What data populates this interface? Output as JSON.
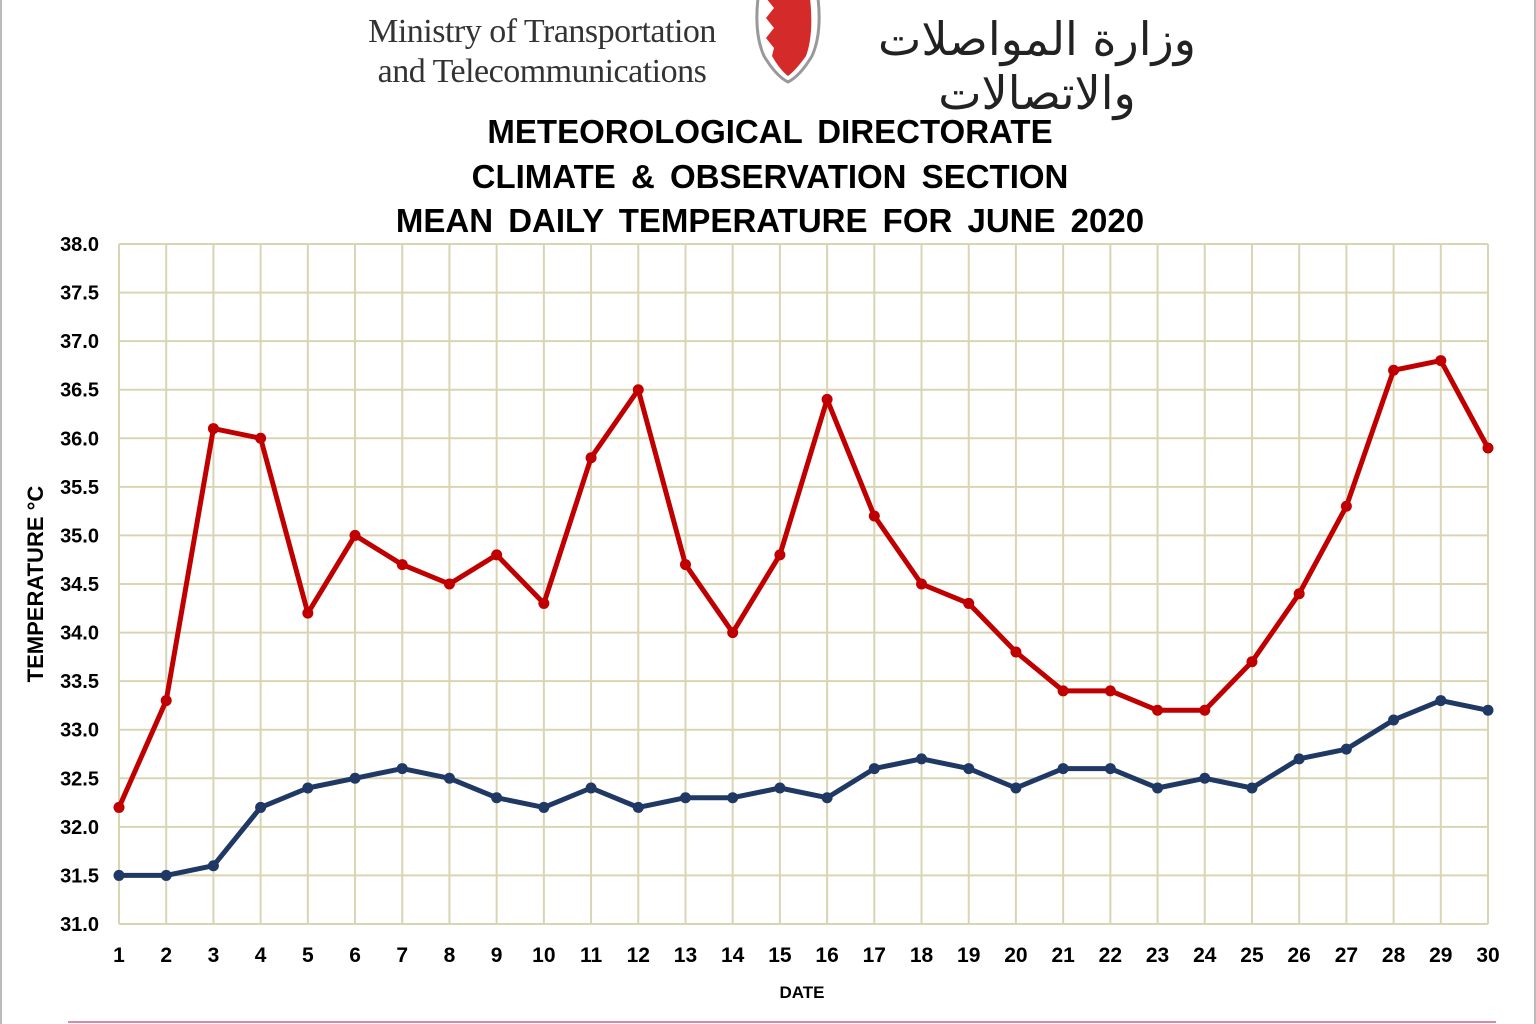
{
  "header": {
    "ministry_en_line1": "Ministry of Transportation",
    "ministry_en_line2": "and Telecommunications",
    "ministry_ar": "وزارة المواصلات والاتصالات"
  },
  "chart_data": {
    "type": "line",
    "title_lines": [
      "METEOROLOGICAL  DIRECTORATE",
      "CLIMATE & OBSERVATION  SECTION",
      "MEAN  DAILY  TEMPERATURE  FOR JUNE  2020"
    ],
    "xlabel": "DATE",
    "ylabel": "TEMPERATURE °C",
    "ylim": [
      31.0,
      38.0
    ],
    "ytick_step": 0.5,
    "grid": true,
    "x": [
      1,
      2,
      3,
      4,
      5,
      6,
      7,
      8,
      9,
      10,
      11,
      12,
      13,
      14,
      15,
      16,
      17,
      18,
      19,
      20,
      21,
      22,
      23,
      24,
      25,
      26,
      27,
      28,
      29,
      30
    ],
    "series": [
      {
        "color": "#c00000",
        "values": [
          32.2,
          33.3,
          36.1,
          36.0,
          34.2,
          35.0,
          34.7,
          34.5,
          34.8,
          34.3,
          35.8,
          36.5,
          34.7,
          34.0,
          34.8,
          36.4,
          35.2,
          34.5,
          34.3,
          33.8,
          33.4,
          33.4,
          33.2,
          33.2,
          33.7,
          34.4,
          35.3,
          36.7,
          36.8,
          35.9
        ]
      },
      {
        "color": "#1f3864",
        "values": [
          31.5,
          31.5,
          31.6,
          32.2,
          32.4,
          32.5,
          32.6,
          32.5,
          32.3,
          32.2,
          32.4,
          32.2,
          32.3,
          32.3,
          32.4,
          32.3,
          32.6,
          32.7,
          32.6,
          32.4,
          32.6,
          32.6,
          32.4,
          32.5,
          32.4,
          32.7,
          32.8,
          33.1,
          33.3,
          33.2
        ]
      }
    ],
    "grid_color": "#d9d5b3"
  }
}
